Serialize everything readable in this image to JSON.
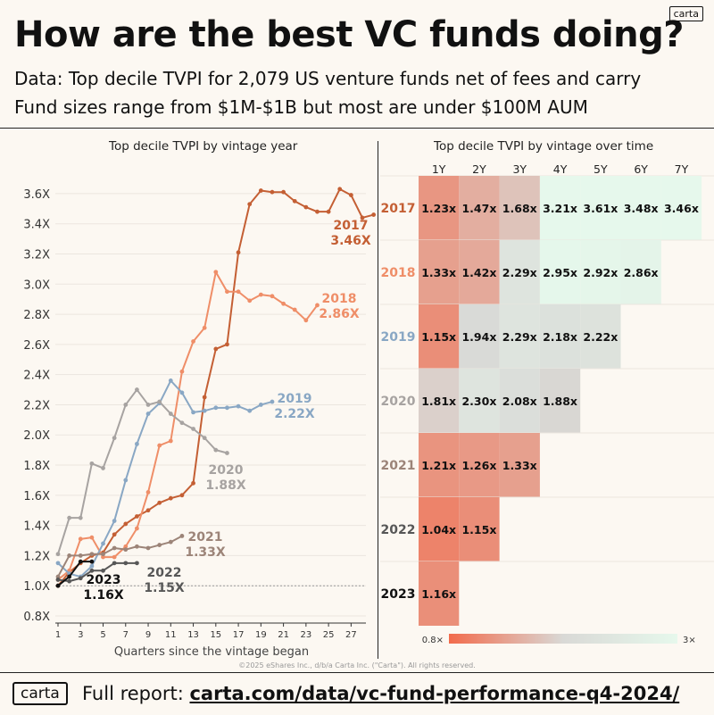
{
  "logo": "carta",
  "title": "How are the best VC funds doing?",
  "subtitle1": "Data: Top decile TVPI for 2,079 US venture funds net of fees and carry",
  "subtitle2": "Fund sizes range from $1M-$1B but most are under $100M AUM",
  "copyright": "©2025 eShares Inc., d/b/a Carta Inc. (\"Carta\"). All rights reserved.",
  "footer": {
    "logo": "carta",
    "prefix": "Full report: ",
    "link": "carta.com/data/vc-fund-performance-q4-2024/"
  },
  "colors": {
    "2017": "#c45f34",
    "2018": "#ef8e68",
    "2019": "#89a7c4",
    "2020": "#a7a3a1",
    "2021": "#9c8478",
    "2022": "#575757",
    "2023": "#111111",
    "heat_low": "#f26b4c",
    "heat_mid": "#d9d9d6",
    "heat_high": "#e6f8ec"
  },
  "chart_data": [
    {
      "type": "line",
      "title": "Top decile TVPI by vintage year",
      "xlabel": "Quarters since the vintage began",
      "ylabel": "",
      "xlim": [
        1,
        28
      ],
      "ylim": [
        0.8,
        3.7
      ],
      "x_ticks": [
        "1",
        "3",
        "5",
        "7",
        "9",
        "11",
        "13",
        "15",
        "17",
        "19",
        "21",
        "23",
        "25",
        "27"
      ],
      "y_ticks": [
        "0.8X",
        "1.0X",
        "1.2X",
        "1.4X",
        "1.6X",
        "1.8X",
        "2.0X",
        "2.2X",
        "2.4X",
        "2.6X",
        "2.8X",
        "3.0X",
        "3.2X",
        "3.4X",
        "3.6X"
      ],
      "reference_line": 1.0,
      "series": [
        {
          "name": "2017",
          "label": "3.46X",
          "values": [
            1.0,
            1.09,
            1.15,
            1.2,
            1.22,
            1.34,
            1.41,
            1.46,
            1.5,
            1.55,
            1.58,
            1.6,
            1.68,
            2.25,
            2.57,
            2.6,
            3.21,
            3.53,
            3.62,
            3.61,
            3.61,
            3.55,
            3.51,
            3.48,
            3.48,
            3.63,
            3.59,
            3.44,
            3.46
          ]
        },
        {
          "name": "2018",
          "label": "2.86X",
          "values": [
            1.04,
            1.1,
            1.31,
            1.32,
            1.19,
            1.19,
            1.26,
            1.38,
            1.62,
            1.93,
            1.96,
            2.42,
            2.62,
            2.71,
            3.08,
            2.95,
            2.95,
            2.89,
            2.93,
            2.92,
            2.87,
            2.83,
            2.76,
            2.86
          ]
        },
        {
          "name": "2019",
          "label": "2.22X",
          "values": [
            1.15,
            1.08,
            1.06,
            1.13,
            1.28,
            1.43,
            1.7,
            1.94,
            2.14,
            2.21,
            2.36,
            2.28,
            2.15,
            2.16,
            2.18,
            2.18,
            2.19,
            2.16,
            2.2,
            2.22
          ]
        },
        {
          "name": "2020",
          "label": "1.88X",
          "values": [
            1.21,
            1.45,
            1.45,
            1.81,
            1.78,
            1.98,
            2.2,
            2.3,
            2.2,
            2.22,
            2.14,
            2.08,
            2.04,
            1.98,
            1.9,
            1.88
          ]
        },
        {
          "name": "2021",
          "label": "1.33X",
          "values": [
            1.06,
            1.2,
            1.2,
            1.21,
            1.21,
            1.25,
            1.24,
            1.26,
            1.25,
            1.27,
            1.29,
            1.33
          ]
        },
        {
          "name": "2022",
          "label": "1.15X",
          "values": [
            1.04,
            1.03,
            1.05,
            1.1,
            1.1,
            1.15,
            1.15,
            1.15
          ]
        },
        {
          "name": "2023",
          "label": "1.16X",
          "values": [
            1.0,
            1.06,
            1.16,
            1.16
          ]
        }
      ]
    },
    {
      "type": "heatmap",
      "title": "Top decile TVPI by vintage over time",
      "columns": [
        "1Y",
        "2Y",
        "3Y",
        "4Y",
        "5Y",
        "6Y",
        "7Y"
      ],
      "rows": [
        "2017",
        "2018",
        "2019",
        "2020",
        "2021",
        "2022",
        "2023"
      ],
      "values": [
        [
          1.23,
          1.47,
          1.68,
          3.21,
          3.61,
          3.48,
          3.46
        ],
        [
          1.33,
          1.42,
          2.29,
          2.95,
          2.92,
          2.86
        ],
        [
          1.15,
          1.94,
          2.29,
          2.18,
          2.22
        ],
        [
          1.81,
          2.3,
          2.08,
          1.88
        ],
        [
          1.21,
          1.26,
          1.33
        ],
        [
          1.04,
          1.15
        ],
        [
          1.16
        ]
      ],
      "value_suffix": "x",
      "color_scale": {
        "min": 0.8,
        "max": 3.0,
        "min_label": "0.8×",
        "max_label": "3×"
      }
    }
  ]
}
